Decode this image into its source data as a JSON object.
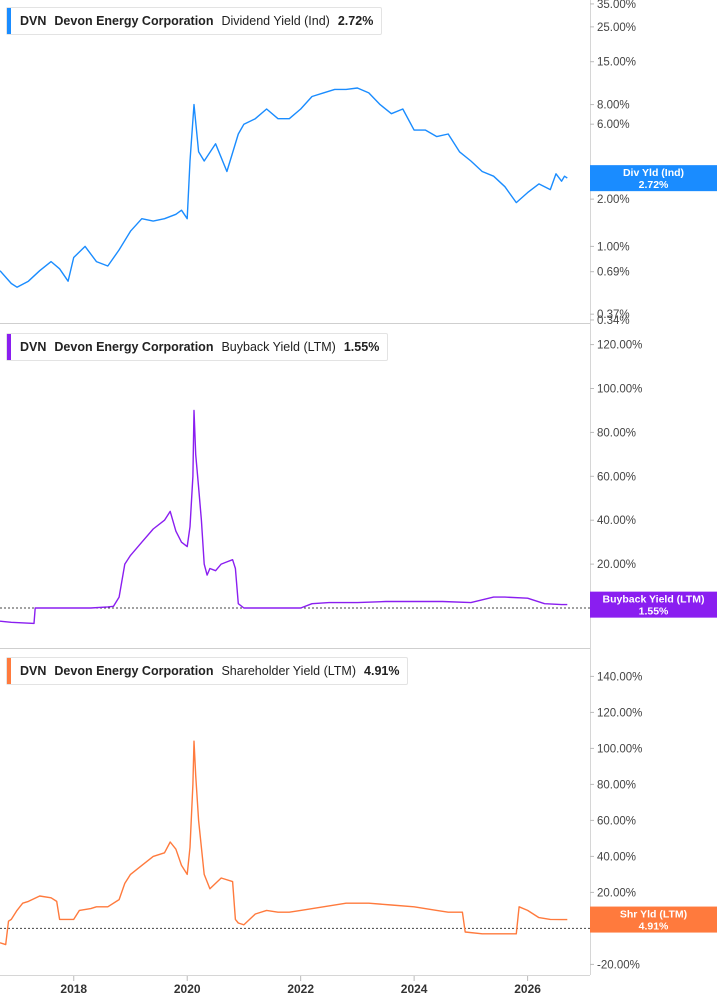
{
  "panels": [
    {
      "ticker": "DVN",
      "company": "Devon Energy Corporation",
      "metric": "Dividend Yield (Ind)",
      "value": "2.72%",
      "color": "#1a8cff",
      "tag": {
        "label": "Div Yld (Ind)",
        "value": "2.72%"
      }
    },
    {
      "ticker": "DVN",
      "company": "Devon Energy Corporation",
      "metric": "Buyback Yield (LTM)",
      "value": "1.55%",
      "color": "#8a1ef0",
      "tag": {
        "label": "Buyback Yield (LTM)",
        "value": "1.55%"
      }
    },
    {
      "ticker": "DVN",
      "company": "Devon Energy Corporation",
      "metric": "Shareholder Yield (LTM)",
      "value": "4.91%",
      "color": "#ff7a3d",
      "tag": {
        "label": "Shr Yld (LTM)",
        "value": "4.91%"
      }
    }
  ],
  "chart_data": [
    {
      "type": "line",
      "title": "DVN Devon Energy Corporation Dividend Yield (Ind) 2.72%",
      "y_scale": "log",
      "ylim": [
        0.33,
        36
      ],
      "y_ticks": [
        {
          "label": "35.00%",
          "value": 35
        },
        {
          "label": "25.00%",
          "value": 25
        },
        {
          "label": "15.00%",
          "value": 15
        },
        {
          "label": "8.00%",
          "value": 8
        },
        {
          "label": "6.00%",
          "value": 6
        },
        {
          "label": "2.00%",
          "value": 2
        },
        {
          "label": "1.00%",
          "value": 1
        },
        {
          "label": "0.69%",
          "value": 0.69
        },
        {
          "label": "0.37%",
          "value": 0.37
        },
        {
          "label": "0.34%",
          "value": 0.34
        }
      ],
      "series": [
        {
          "x": [
            2016.7,
            2016.9,
            2017.0,
            2017.2,
            2017.4,
            2017.6,
            2017.75,
            2017.9,
            2018.0,
            2018.2,
            2018.4,
            2018.6,
            2018.8,
            2019.0,
            2019.2,
            2019.4,
            2019.6,
            2019.8,
            2019.9,
            2020.0,
            2020.05,
            2020.12,
            2020.2,
            2020.3,
            2020.5,
            2020.7,
            2020.9,
            2021.0,
            2021.2,
            2021.4,
            2021.6,
            2021.8,
            2022.0,
            2022.2,
            2022.4,
            2022.6,
            2022.8,
            2023.0,
            2023.2,
            2023.4,
            2023.6,
            2023.8,
            2024.0,
            2024.2,
            2024.4,
            2024.6,
            2024.8,
            2025.0,
            2025.2,
            2025.4,
            2025.6,
            2025.8,
            2026.0,
            2026.2,
            2026.4,
            2026.5,
            2026.6,
            2026.65,
            2026.7
          ],
          "y": [
            0.7,
            0.58,
            0.55,
            0.6,
            0.7,
            0.8,
            0.72,
            0.6,
            0.85,
            1.0,
            0.8,
            0.75,
            0.95,
            1.25,
            1.5,
            1.45,
            1.5,
            1.6,
            1.7,
            1.5,
            3.5,
            8.0,
            4.0,
            3.5,
            4.5,
            3.0,
            5.2,
            6.0,
            6.5,
            7.5,
            6.5,
            6.5,
            7.5,
            9.0,
            9.5,
            10.0,
            10.0,
            10.2,
            9.5,
            8.0,
            7.0,
            7.5,
            5.5,
            5.5,
            5.0,
            5.2,
            4.0,
            3.5,
            3.0,
            2.8,
            2.4,
            1.9,
            2.2,
            2.5,
            2.3,
            2.9,
            2.6,
            2.8,
            2.72
          ]
        }
      ]
    },
    {
      "type": "line",
      "title": "DVN Devon Energy Corporation Buyback Yield (LTM) 1.55%",
      "ylim": [
        -10,
        123
      ],
      "y_ticks": [
        {
          "label": "120.00%",
          "value": 120
        },
        {
          "label": "100.00%",
          "value": 100
        },
        {
          "label": "80.00%",
          "value": 80
        },
        {
          "label": "60.00%",
          "value": 60
        },
        {
          "label": "40.00%",
          "value": 40
        },
        {
          "label": "20.00%",
          "value": 20
        },
        {
          "label": "0.00%",
          "value": 0
        }
      ],
      "series": [
        {
          "x": [
            2016.7,
            2016.9,
            2017.3,
            2017.32,
            2017.6,
            2018.0,
            2018.3,
            2018.6,
            2018.7,
            2018.8,
            2018.9,
            2019.0,
            2019.2,
            2019.4,
            2019.6,
            2019.7,
            2019.8,
            2019.9,
            2020.0,
            2020.05,
            2020.1,
            2020.12,
            2020.15,
            2020.2,
            2020.25,
            2020.3,
            2020.35,
            2020.4,
            2020.5,
            2020.6,
            2020.7,
            2020.8,
            2020.85,
            2020.9,
            2021.0,
            2021.2,
            2021.5,
            2022.0,
            2022.2,
            2022.5,
            2023.0,
            2023.5,
            2024.0,
            2024.5,
            2025.0,
            2025.4,
            2025.6,
            2026.0,
            2026.3,
            2026.6,
            2026.7
          ],
          "y": [
            -6,
            -6.5,
            -7,
            0,
            0,
            0,
            0,
            0.5,
            0.8,
            5,
            20,
            24,
            30,
            36,
            40,
            44,
            35,
            30,
            28,
            37,
            60,
            90,
            70,
            55,
            40,
            20,
            15,
            18,
            17,
            20,
            21,
            22,
            18,
            2,
            0,
            0,
            0,
            0,
            2,
            2.5,
            2.5,
            3,
            3,
            3,
            2.5,
            5,
            5,
            4.5,
            2,
            1.55,
            1.55
          ]
        }
      ]
    },
    {
      "type": "line",
      "title": "DVN Devon Energy Corporation Shareholder Yield (LTM) 4.91%",
      "ylim": [
        -22,
        148
      ],
      "y_ticks": [
        {
          "label": "140.00%",
          "value": 140
        },
        {
          "label": "120.00%",
          "value": 120
        },
        {
          "label": "100.00%",
          "value": 100
        },
        {
          "label": "80.00%",
          "value": 80
        },
        {
          "label": "60.00%",
          "value": 60
        },
        {
          "label": "40.00%",
          "value": 40
        },
        {
          "label": "20.00%",
          "value": 20
        },
        {
          "label": "0.00%",
          "value": 0
        },
        {
          "label": "-20.00%",
          "value": -20
        }
      ],
      "series": [
        {
          "x": [
            2016.7,
            2016.8,
            2016.85,
            2016.9,
            2017.0,
            2017.1,
            2017.2,
            2017.4,
            2017.6,
            2017.7,
            2017.75,
            2018.0,
            2018.1,
            2018.3,
            2018.4,
            2018.6,
            2018.8,
            2018.9,
            2019.0,
            2019.2,
            2019.4,
            2019.6,
            2019.7,
            2019.8,
            2019.9,
            2020.0,
            2020.05,
            2020.1,
            2020.12,
            2020.15,
            2020.2,
            2020.3,
            2020.4,
            2020.6,
            2020.8,
            2020.85,
            2020.9,
            2021.0,
            2021.2,
            2021.4,
            2021.6,
            2021.8,
            2022.0,
            2022.4,
            2022.8,
            2023.2,
            2023.6,
            2024.0,
            2024.4,
            2024.6,
            2024.85,
            2024.9,
            2025.2,
            2025.5,
            2025.8,
            2025.85,
            2026.0,
            2026.2,
            2026.4,
            2026.6,
            2026.7
          ],
          "y": [
            -8,
            -9,
            4,
            5,
            10,
            14,
            15,
            18,
            17,
            15,
            5,
            5,
            10,
            11,
            12,
            12,
            16,
            25,
            30,
            35,
            40,
            42,
            48,
            44,
            35,
            30,
            45,
            80,
            104,
            85,
            60,
            30,
            22,
            28,
            26,
            5,
            3,
            2,
            8,
            10,
            9,
            9,
            10,
            12,
            14,
            14,
            13,
            12,
            10,
            9,
            9,
            -2,
            -3,
            -3,
            -3,
            12,
            10,
            6,
            5,
            4.91,
            4.91
          ]
        }
      ]
    }
  ],
  "x_axis": {
    "ticks": [
      {
        "label": "2018",
        "value": 2018
      },
      {
        "label": "2020",
        "value": 2020
      },
      {
        "label": "2022",
        "value": 2022
      },
      {
        "label": "2024",
        "value": 2024
      },
      {
        "label": "2026",
        "value": 2026
      }
    ],
    "range": [
      2016.7,
      2027.1
    ]
  }
}
